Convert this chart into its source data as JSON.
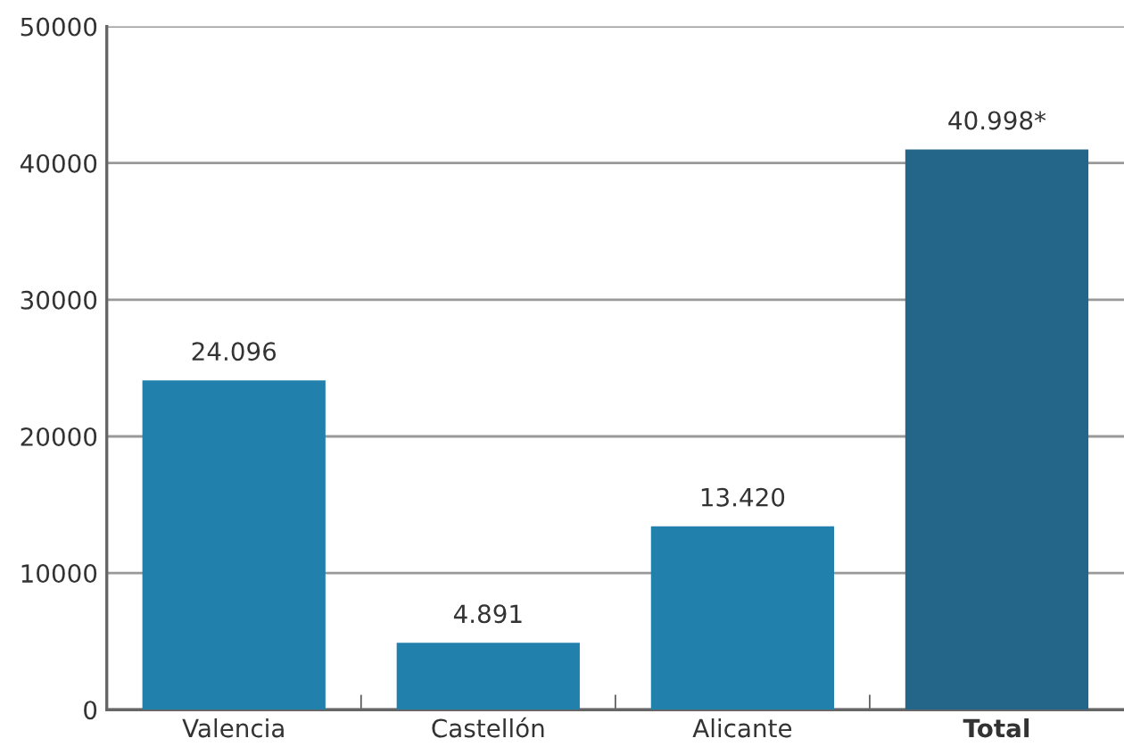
{
  "chart_data": {
    "type": "bar",
    "categories": [
      "Valencia",
      "Castellón",
      "Alicante",
      "Total"
    ],
    "values": [
      24096,
      4891,
      13420,
      40998
    ],
    "colors": [
      "#2280ac",
      "#2280ac",
      "#2280ac",
      "#23668a"
    ],
    "value_labels": [
      "24.096",
      "4.891",
      "13.420",
      "40.998*"
    ],
    "ylim": [
      0,
      50000
    ],
    "yticks": [
      0,
      10000,
      20000,
      30000,
      40000,
      50000
    ],
    "grid": "y"
  }
}
